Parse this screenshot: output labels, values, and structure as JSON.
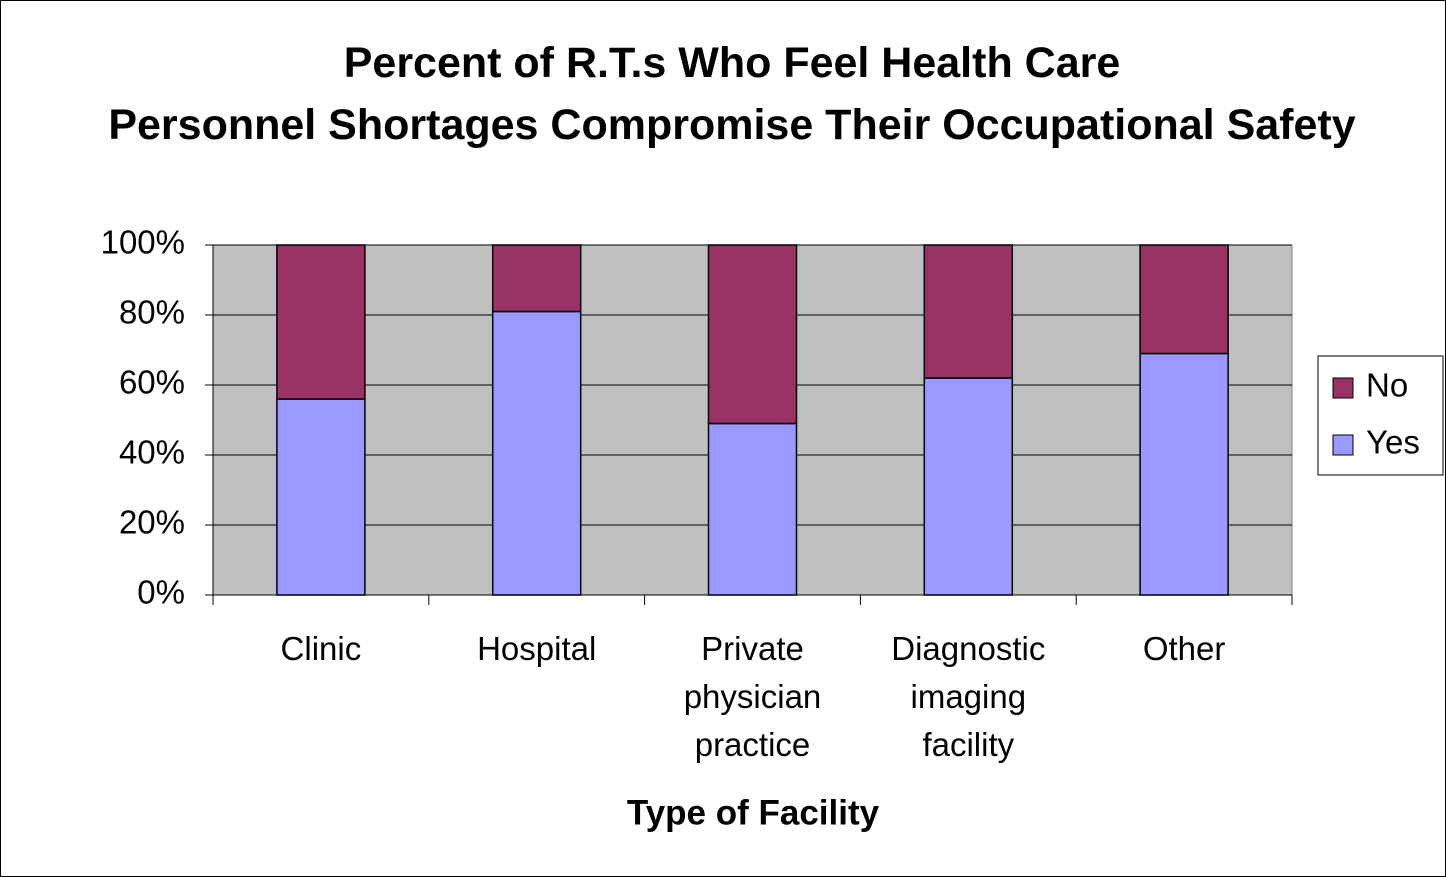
{
  "chart_data": {
    "type": "stacked_bar",
    "title": "Percent of R.T.s Who Feel Health Care Personnel Shortages Compromise Their Occupational Safety",
    "x_label": "Type of Facility",
    "categories": [
      "Clinic",
      "Hospital",
      "Private physician practice",
      "Diagnostic imaging facility",
      "Other"
    ],
    "series": [
      {
        "name": "Yes",
        "color": "#9999ff",
        "values": [
          56,
          81,
          49,
          62,
          69
        ]
      },
      {
        "name": "No",
        "color": "#993366",
        "values": [
          44,
          19,
          51,
          38,
          31
        ]
      }
    ],
    "ylim": [
      0,
      100
    ],
    "yticks": [
      {
        "value": 0,
        "label": "0%"
      },
      {
        "value": 20,
        "label": "20%"
      },
      {
        "value": 40,
        "label": "40%"
      },
      {
        "value": 60,
        "label": "60%"
      },
      {
        "value": 80,
        "label": "80%"
      },
      {
        "value": 100,
        "label": "100%"
      }
    ],
    "grid": true,
    "legend": "right"
  }
}
